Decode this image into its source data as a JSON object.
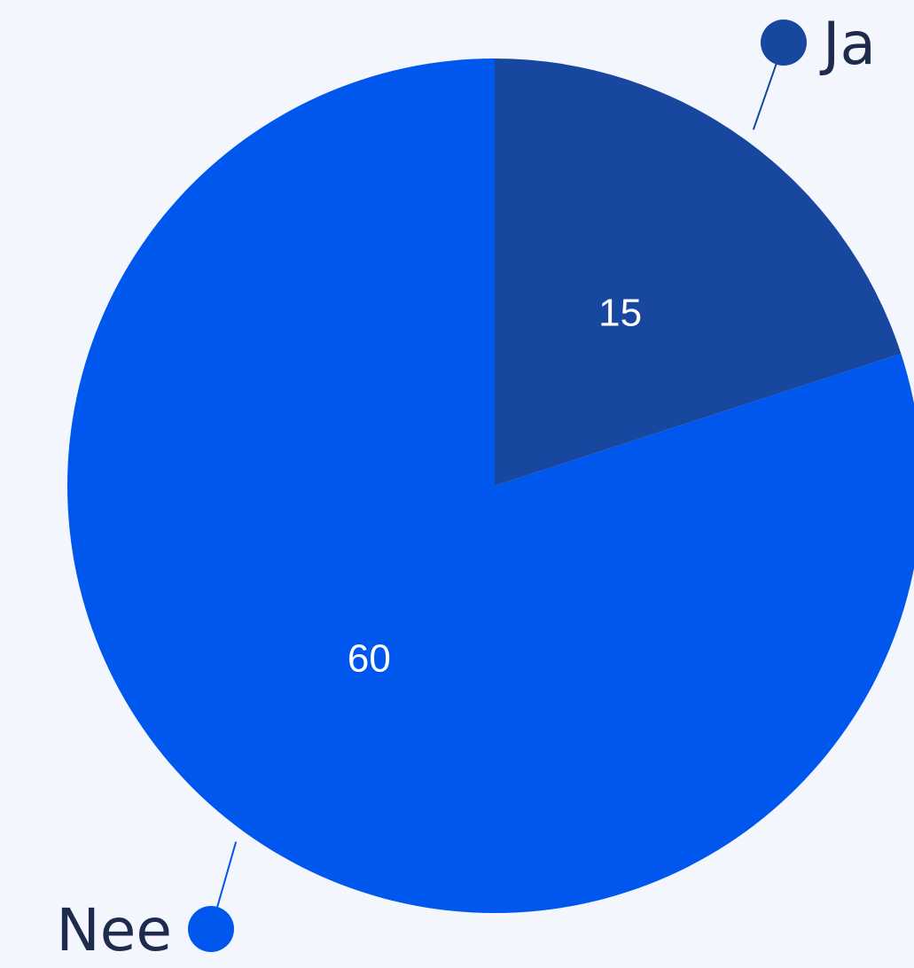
{
  "chart_data": {
    "type": "pie",
    "title": "",
    "slices": [
      {
        "label": "Ja",
        "value": 15,
        "color": "#17479e"
      },
      {
        "label": "Nee",
        "value": 60,
        "color": "#0057ee"
      }
    ],
    "start_angle_deg": 0,
    "direction": "clockwise",
    "show_values": true,
    "legend": "outside-leader-lines"
  }
}
